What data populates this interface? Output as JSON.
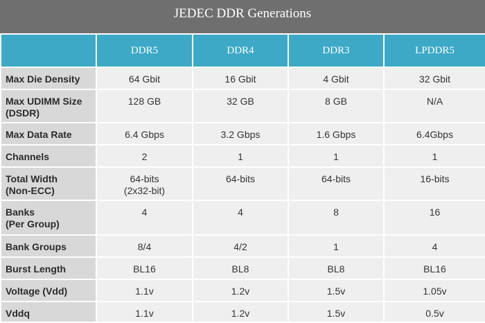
{
  "title": "JEDEC DDR Generations",
  "table": {
    "header": [
      "DDR5",
      "DDR4",
      "DDR3",
      "LPDDR5"
    ],
    "rows": [
      [
        "Max Die Density",
        "64 Gbit",
        "16 Gbit",
        "4 Gbit",
        "32 Gbit"
      ],
      [
        "Max UDIMM Size\n(DSDR)",
        "128 GB",
        "32 GB",
        "8 GB",
        "N/A"
      ],
      [
        "Max Data Rate",
        "6.4 Gbps",
        "3.2 Gbps",
        "1.6 Gbps",
        "6.4Gbps"
      ],
      [
        "Channels",
        "2",
        "1",
        "1",
        "1"
      ],
      [
        "Total Width\n(Non-ECC)",
        "64-bits\n(2x32-bit)",
        "64-bits",
        "64-bits",
        "16-bits"
      ],
      [
        "Banks\n(Per Group)",
        "4",
        "4",
        "8",
        "16"
      ],
      [
        "Bank Groups",
        "8/4",
        "4/2",
        "1",
        "4"
      ],
      [
        "Burst Length",
        "BL16",
        "BL8",
        "BL8",
        "BL16"
      ],
      [
        "Voltage (Vdd)",
        "1.1v",
        "1.2v",
        "1.5v",
        "1.05v"
      ],
      [
        "Vddq",
        "1.1v",
        "1.2v",
        "1.5v",
        "0.5v"
      ]
    ]
  }
}
